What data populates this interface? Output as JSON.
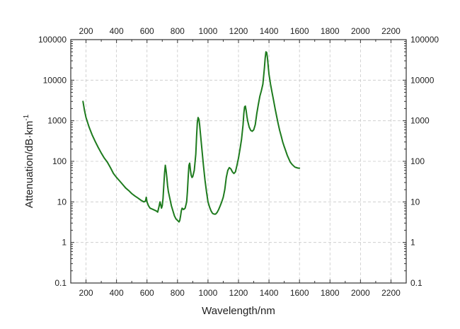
{
  "chart_data": {
    "type": "line",
    "xlabel": "Wavelength/nm",
    "ylabel_main": "Attenuation/dB·km",
    "ylabel_superscript": "-1",
    "xlim": [
      100,
      2300
    ],
    "ylim": [
      0.1,
      100000
    ],
    "yscale": "log",
    "grid": true,
    "x_ticks": [
      200,
      400,
      600,
      800,
      1000,
      1200,
      1400,
      1600,
      1800,
      2000,
      2200
    ],
    "y_ticks": [
      0.1,
      1,
      10,
      100,
      1000,
      10000,
      100000
    ],
    "y_tick_labels": [
      "0.1",
      "1",
      "10",
      "100",
      "1000",
      "10000",
      "100000"
    ],
    "series": [
      {
        "color": "#1e7b1e",
        "x": [
          180,
          190,
          200,
          220,
          240,
          260,
          280,
          300,
          320,
          340,
          360,
          380,
          400,
          420,
          440,
          460,
          480,
          500,
          520,
          540,
          560,
          580,
          590,
          595,
          600,
          610,
          620,
          640,
          660,
          670,
          680,
          685,
          690,
          695,
          700,
          705,
          710,
          715,
          720,
          725,
          730,
          735,
          740,
          750,
          760,
          770,
          780,
          790,
          800,
          810,
          815,
          820,
          825,
          830,
          840,
          850,
          860,
          865,
          870,
          875,
          880,
          885,
          890,
          895,
          900,
          910,
          920,
          925,
          930,
          935,
          940,
          945,
          950,
          960,
          970,
          980,
          990,
          1000,
          1010,
          1020,
          1030,
          1040,
          1050,
          1060,
          1070,
          1080,
          1090,
          1100,
          1110,
          1120,
          1130,
          1140,
          1150,
          1160,
          1170,
          1180,
          1190,
          1200,
          1210,
          1220,
          1230,
          1235,
          1240,
          1245,
          1250,
          1255,
          1260,
          1270,
          1280,
          1290,
          1300,
          1310,
          1320,
          1330,
          1340,
          1350,
          1360,
          1370,
          1375,
          1380,
          1385,
          1390,
          1395,
          1400,
          1410,
          1420,
          1430,
          1440,
          1450,
          1460,
          1470,
          1480,
          1490,
          1500,
          1510,
          1520,
          1530,
          1540,
          1550,
          1560,
          1570,
          1580,
          1590,
          1600
        ],
        "y": [
          3000,
          1800,
          1200,
          700,
          450,
          310,
          220,
          160,
          120,
          95,
          70,
          50,
          40,
          33,
          27,
          22,
          19,
          16,
          14,
          12.5,
          11,
          10,
          10.5,
          13,
          10,
          8,
          7,
          6.5,
          6,
          5.6,
          8,
          10,
          8.5,
          7,
          8,
          12,
          25,
          50,
          80,
          60,
          40,
          25,
          18,
          12,
          8,
          6,
          4.5,
          3.8,
          3.5,
          3.2,
          3.5,
          4.5,
          6,
          7,
          6.5,
          7,
          10,
          18,
          40,
          80,
          90,
          60,
          45,
          40,
          42,
          60,
          150,
          400,
          900,
          1200,
          1100,
          800,
          500,
          200,
          80,
          35,
          18,
          10,
          7.5,
          6,
          5.2,
          5,
          5,
          5.5,
          6.5,
          8,
          10,
          13,
          20,
          40,
          60,
          70,
          65,
          55,
          50,
          55,
          80,
          120,
          200,
          350,
          800,
          1500,
          2200,
          2300,
          1800,
          1300,
          1000,
          700,
          580,
          550,
          600,
          800,
          1500,
          2500,
          4000,
          5500,
          8000,
          20000,
          35000,
          50000,
          48000,
          35000,
          22000,
          14000,
          8000,
          5000,
          3200,
          2000,
          1300,
          850,
          580,
          420,
          300,
          230,
          180,
          140,
          115,
          95,
          85,
          78,
          72,
          70,
          68,
          68
        ]
      }
    ]
  }
}
